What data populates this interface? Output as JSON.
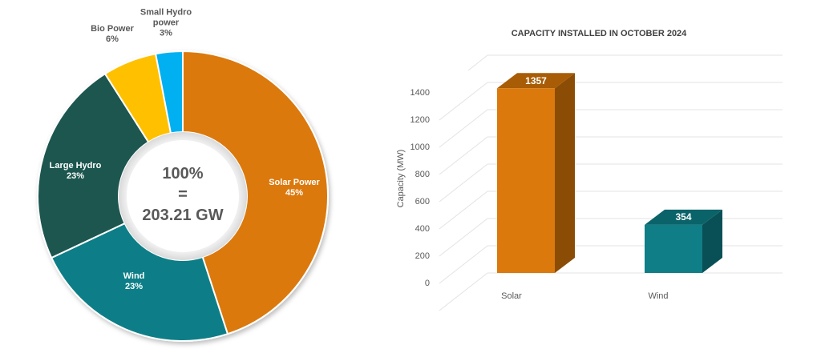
{
  "chart_data": [
    {
      "type": "pie",
      "subtype": "donut",
      "title": "",
      "center_label": {
        "line1": "100%",
        "line2": "=",
        "line3": "203.21 GW"
      },
      "categories": [
        "Solar Power",
        "Wind",
        "Large Hydro",
        "Bio Power",
        "Small Hydro power"
      ],
      "values": [
        45,
        23,
        23,
        6,
        3
      ],
      "unit": "%",
      "colors": [
        "#DB790C",
        "#0F7E87",
        "#1A5650",
        "#FFC000",
        "#00B0F0"
      ],
      "labels": [
        {
          "name": "Solar Power",
          "pct": "45%"
        },
        {
          "name": "Wind",
          "pct": "23%"
        },
        {
          "name": "Large Hydro",
          "pct": "23%"
        },
        {
          "name": "Bio Power",
          "pct": "6%"
        },
        {
          "name": "Small Hydro power",
          "name_line1": "Small Hydro",
          "name_line2": "power",
          "pct": "3%"
        }
      ]
    },
    {
      "type": "bar",
      "style": "3d-column",
      "title": "CAPACITY INSTALLED IN OCTOBER 2024",
      "xlabel": "",
      "ylabel": "Capacity (MW)",
      "categories": [
        "Solar",
        "Wind"
      ],
      "values": [
        1357,
        354
      ],
      "value_labels": [
        "1357",
        "354"
      ],
      "colors": [
        "#DB790C",
        "#0F7E87"
      ],
      "ylim": [
        0,
        1600
      ],
      "yticks": [
        "0",
        "200",
        "400",
        "600",
        "800",
        "1000",
        "1200",
        "1400"
      ],
      "grid": true,
      "legend": "none"
    }
  ]
}
